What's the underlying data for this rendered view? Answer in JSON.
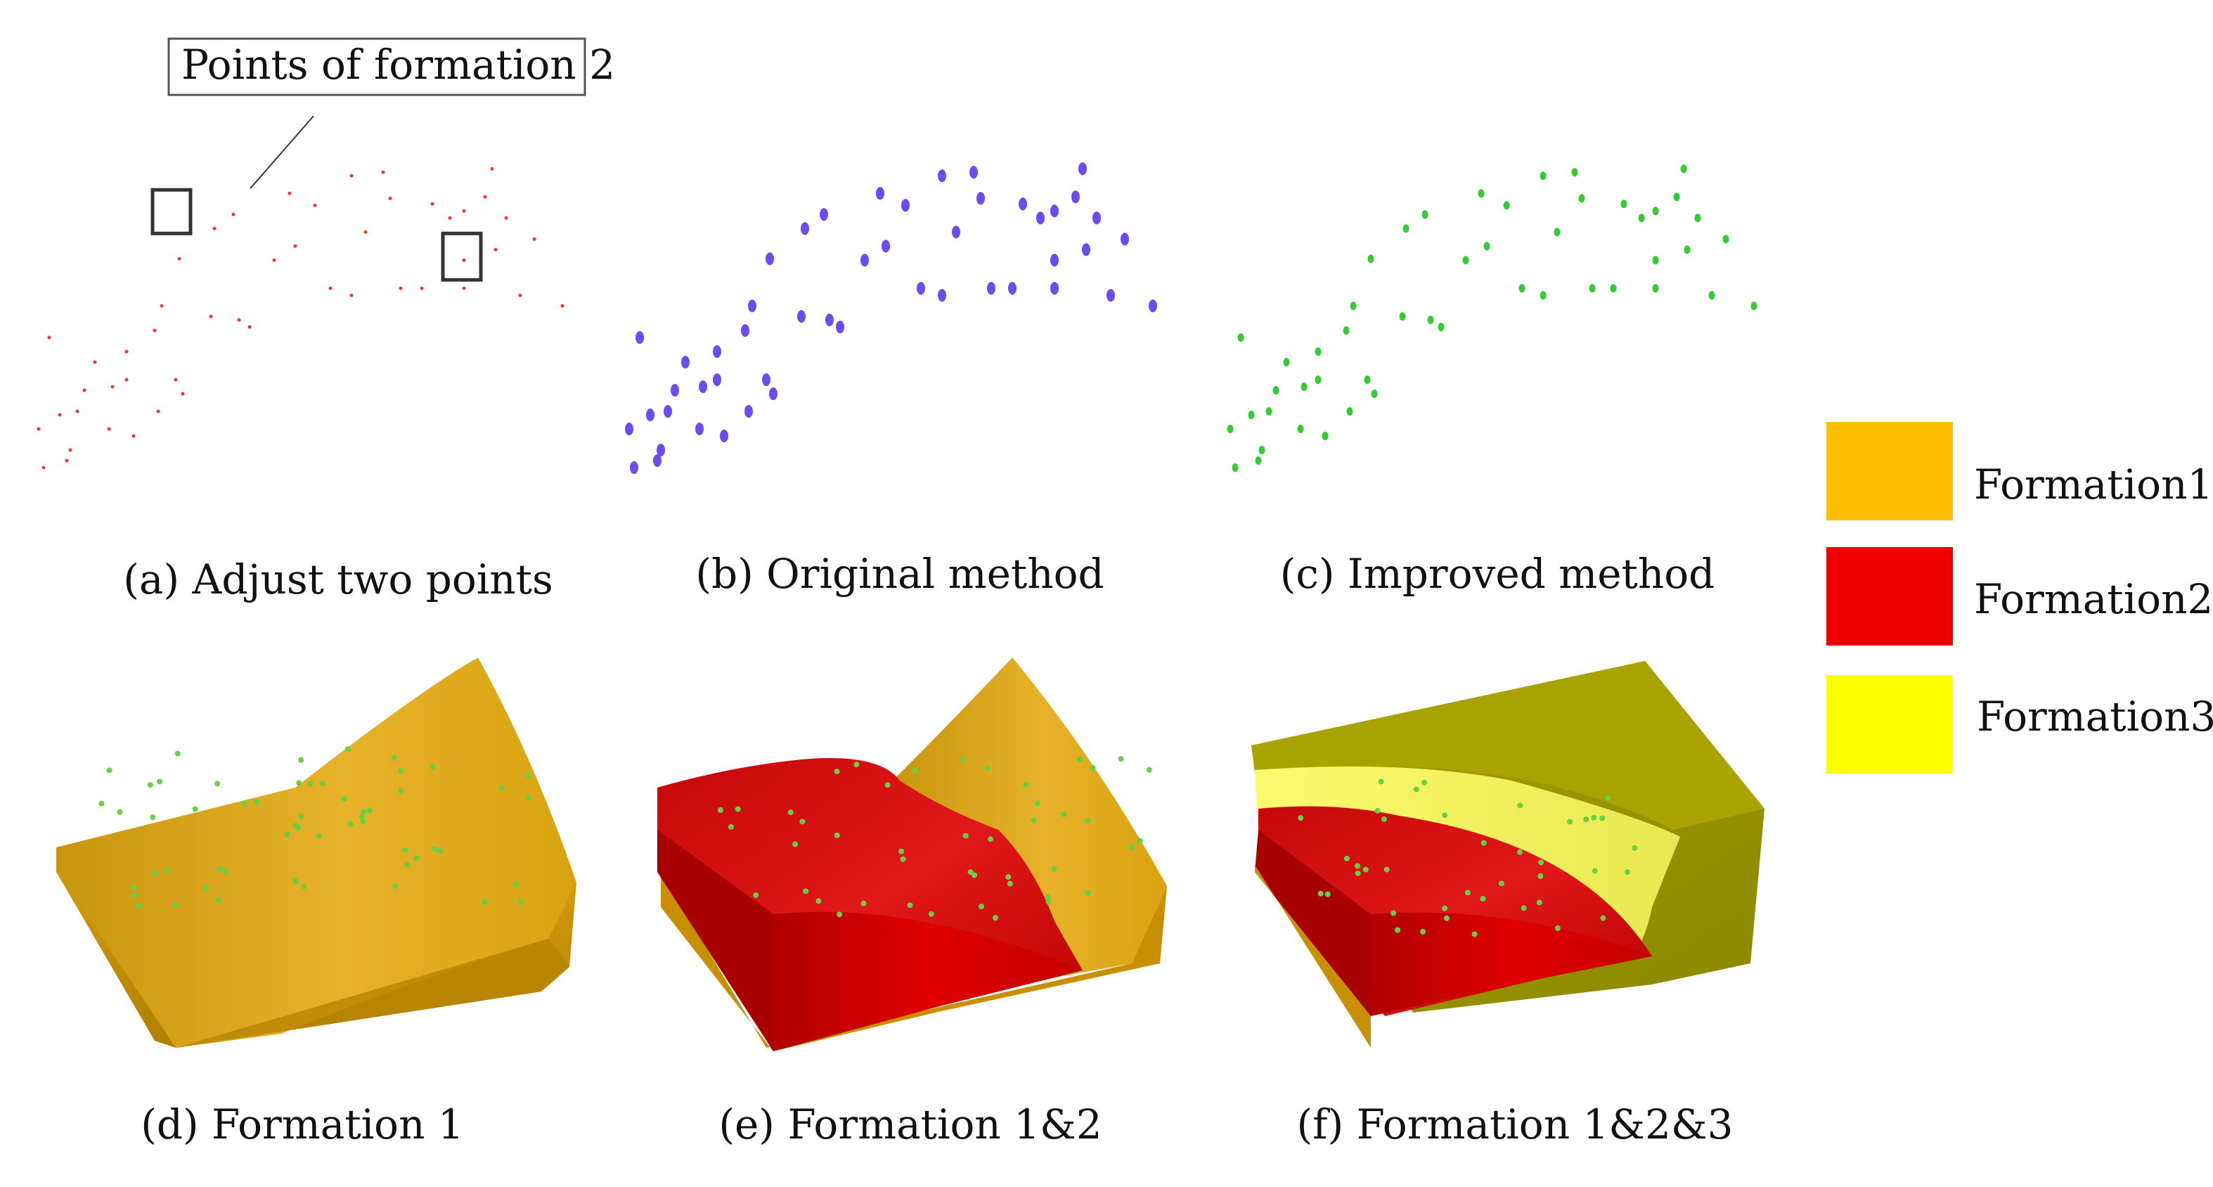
{
  "figure": {
    "annotation": "Points of formation 2",
    "panels": {
      "a": "(a) Adjust two points",
      "b": "(b) Original method",
      "c": "(c) Improved method",
      "d": "(d) Formation 1",
      "e": "(e) Formation 1&2",
      "f": "(f) Formation 1&2&3"
    },
    "legend": [
      {
        "label": "Formation1",
        "color": "#FFBF00"
      },
      {
        "label": "Formation2",
        "color": "#EE0000"
      },
      {
        "label": "Formation3",
        "color": "#FFFF00"
      }
    ],
    "colors": {
      "points_a": "#ff3030",
      "points_b": "#6a4cf0",
      "points_c": "#33cc33",
      "formation1_surface": "#d9a310",
      "formation1_side": "#c88f00",
      "formation2_surface": "#d41010",
      "formation2_side": "#c80000",
      "formation3_surface": "#f0f060",
      "formation3_side": "#9a9a00"
    }
  }
}
